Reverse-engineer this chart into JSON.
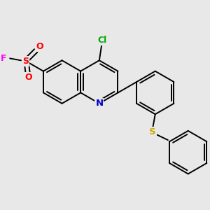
{
  "bg_color": "#e8e8e8",
  "bond_color": "#000000",
  "bond_width": 1.4,
  "atom_colors": {
    "N": "#0000cc",
    "S_sulfonyl": "#ff0000",
    "S_thioether": "#ccaa00",
    "O": "#ff0000",
    "F": "#ff00ff",
    "Cl": "#00aa00"
  },
  "figsize": [
    3.0,
    3.0
  ],
  "dpi": 100,
  "xlim": [
    -1.5,
    2.5
  ],
  "ylim": [
    -2.2,
    1.8
  ]
}
